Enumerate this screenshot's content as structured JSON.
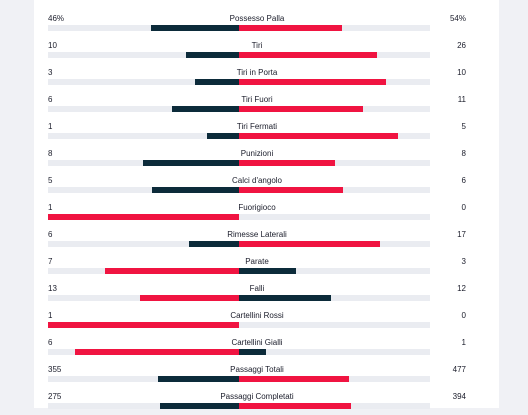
{
  "colors": {
    "winner": "#f01441",
    "loser": "#0c2b3a",
    "track": "#eaecf1"
  },
  "stats": [
    {
      "label": "Possesso Palla",
      "left_text": "46%",
      "right_text": "54%",
      "home": 46,
      "away": 54
    },
    {
      "label": "Tiri",
      "left_text": "10",
      "right_text": "26",
      "home": 10,
      "away": 26
    },
    {
      "label": "Tiri in Porta",
      "left_text": "3",
      "right_text": "10",
      "home": 3,
      "away": 10
    },
    {
      "label": "Tiri Fuori",
      "left_text": "6",
      "right_text": "11",
      "home": 6,
      "away": 11
    },
    {
      "label": "Tiri Fermati",
      "left_text": "1",
      "right_text": "5",
      "home": 1,
      "away": 5
    },
    {
      "label": "Punizioni",
      "left_text": "8",
      "right_text": "8",
      "home": 8,
      "away": 8
    },
    {
      "label": "Calci d'angolo",
      "left_text": "5",
      "right_text": "6",
      "home": 5,
      "away": 6
    },
    {
      "label": "Fuorigioco",
      "left_text": "1",
      "right_text": "0",
      "home": 1,
      "away": 0
    },
    {
      "label": "Rimesse Laterali",
      "left_text": "6",
      "right_text": "17",
      "home": 6,
      "away": 17
    },
    {
      "label": "Parate",
      "left_text": "7",
      "right_text": "3",
      "home": 7,
      "away": 3
    },
    {
      "label": "Falli",
      "left_text": "13",
      "right_text": "12",
      "home": 13,
      "away": 12
    },
    {
      "label": "Cartellini Rossi",
      "left_text": "1",
      "right_text": "0",
      "home": 1,
      "away": 0
    },
    {
      "label": "Cartellini Gialli",
      "left_text": "6",
      "right_text": "1",
      "home": 6,
      "away": 1
    },
    {
      "label": "Passaggi Totali",
      "left_text": "355",
      "right_text": "477",
      "home": 355,
      "away": 477
    },
    {
      "label": "Passaggi Completati",
      "left_text": "275",
      "right_text": "394",
      "home": 275,
      "away": 394
    }
  ]
}
